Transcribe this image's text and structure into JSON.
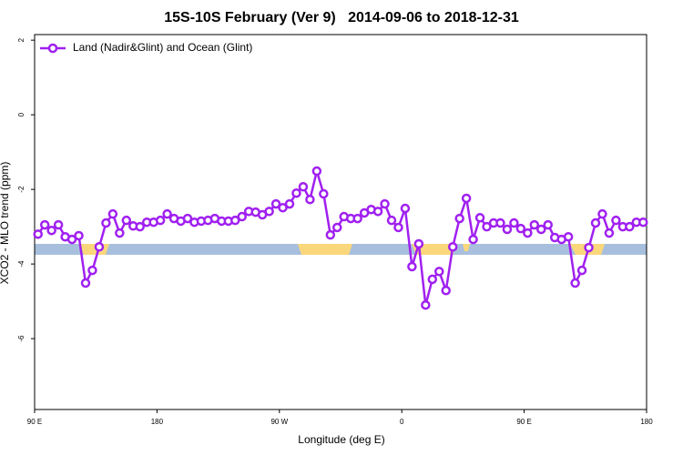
{
  "chart_data": {
    "type": "line",
    "title": "15S-10S February (Ver 9)   2014-09-06 to 2018-12-31",
    "x_label": "Longitude (deg E)",
    "y_label": "XCO2 - MLO trend (ppm)",
    "xlim": [
      90,
      540
    ],
    "ylim": [
      -7.9,
      2.15
    ],
    "xticks": [
      {
        "value": 90,
        "label": "90 E"
      },
      {
        "value": 180,
        "label": "180"
      },
      {
        "value": 270,
        "label": "90 W"
      },
      {
        "value": 360,
        "label": "0"
      },
      {
        "value": 450,
        "label": "90 E"
      },
      {
        "value": 540,
        "label": "180"
      }
    ],
    "yticks": [
      2,
      0,
      -2,
      -4,
      -6
    ],
    "legend": "top-left",
    "x": [
      92.5,
      97.5,
      102.5,
      107.5,
      112.5,
      117.5,
      122.5,
      127.5,
      132.5,
      137.5,
      142.5,
      147.5,
      152.5,
      157.5,
      162.5,
      167.5,
      172.5,
      177.5,
      182.5,
      187.5,
      192.5,
      197.5,
      202.5,
      207.5,
      212.5,
      217.5,
      222.5,
      227.5,
      232.5,
      237.5,
      242.5,
      247.5,
      252.5,
      257.5,
      262.5,
      267.5,
      272.5,
      277.5,
      282.5,
      287.5,
      292.5,
      297.5,
      302.5,
      307.5,
      312.5,
      317.5,
      322.5,
      327.5,
      332.5,
      337.5,
      342.5,
      347.5,
      352.5,
      357.5,
      362.5,
      367.5,
      372.5,
      377.5,
      382.5,
      387.5,
      392.5,
      397.5,
      402.5,
      407.5,
      412.5,
      417.5,
      422.5,
      427.5,
      432.5,
      437.5,
      442.5,
      447.5,
      452.5,
      457.5,
      462.5,
      467.5,
      472.5,
      477.5,
      482.5,
      487.5,
      492.5,
      497.5,
      502.5,
      507.5,
      512.5,
      517.5,
      522.5,
      527.5,
      532.5,
      537.5
    ],
    "series": [
      {
        "name": "Land (Nadir&Glint) and Ocean (Glint)",
        "color": "#a020f0",
        "values": [
          -3.2,
          -2.95,
          -3.1,
          -2.95,
          -3.27,
          -3.34,
          -3.24,
          -4.51,
          -4.17,
          -3.54,
          -2.9,
          -2.66,
          -3.17,
          -2.83,
          -2.98,
          -3.0,
          -2.88,
          -2.88,
          -2.83,
          -2.66,
          -2.78,
          -2.85,
          -2.78,
          -2.88,
          -2.85,
          -2.83,
          -2.78,
          -2.85,
          -2.85,
          -2.83,
          -2.73,
          -2.59,
          -2.61,
          -2.68,
          -2.59,
          -2.39,
          -2.49,
          -2.39,
          -2.1,
          -1.93,
          -2.27,
          -1.51,
          -2.12,
          -3.22,
          -3.02,
          -2.73,
          -2.78,
          -2.78,
          -2.63,
          -2.54,
          -2.59,
          -2.39,
          -2.83,
          -3.02,
          -2.51,
          -4.07,
          -3.46,
          -5.1,
          -4.41,
          -4.2,
          -4.71,
          -3.54,
          -2.78,
          -2.24,
          -3.34,
          -2.76,
          -3.0,
          -2.9,
          -2.9,
          -3.07,
          -2.9,
          -3.05,
          -3.17,
          -2.95,
          -3.07,
          -2.95,
          -3.29,
          -3.34,
          -3.27,
          -4.51,
          -4.17,
          -3.56,
          -2.9,
          -2.66,
          -3.17,
          -2.83,
          -3.0,
          -3.0,
          -2.88,
          -2.88
        ]
      }
    ]
  }
}
